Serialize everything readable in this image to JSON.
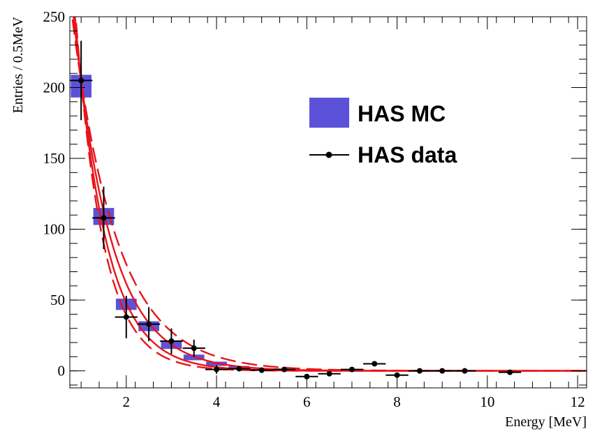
{
  "chart_data": {
    "type": "scatter",
    "xlabel": "Energy [MeV]",
    "ylabel": "Entries / 0.5MeV",
    "xlim": [
      0.75,
      12.2
    ],
    "ylim": [
      -12,
      250
    ],
    "xticks": [
      2,
      4,
      6,
      8,
      10,
      12
    ],
    "yticks": [
      0,
      50,
      100,
      150,
      200,
      250
    ],
    "grid": false,
    "legend_position": "top-right",
    "colors": {
      "mc": "#5c52d9",
      "data": "#000000",
      "fit": "#e8141a"
    },
    "series": [
      {
        "name": "HAS MC",
        "kind": "histogram",
        "bin_width": 0.5,
        "bins": [
          {
            "x": 1.0,
            "y": 201.0,
            "half_height": 8.0
          },
          {
            "x": 1.5,
            "y": 109.0,
            "half_height": 6.0
          },
          {
            "x": 2.0,
            "y": 47.0,
            "half_height": 4.0
          },
          {
            "x": 2.5,
            "y": 31.5,
            "half_height": 3.5
          },
          {
            "x": 3.0,
            "y": 18.0,
            "half_height": 2.5
          },
          {
            "x": 3.5,
            "y": 9.5,
            "half_height": 2.0
          },
          {
            "x": 4.0,
            "y": 5.0,
            "half_height": 1.5
          },
          {
            "x": 4.5,
            "y": 2.5,
            "half_height": 1.0
          }
        ]
      },
      {
        "name": "HAS data",
        "kind": "points",
        "x_half_width": 0.25,
        "points": [
          {
            "x": 1.0,
            "y": 205,
            "err": 28
          },
          {
            "x": 1.5,
            "y": 108,
            "err": 22
          },
          {
            "x": 2.0,
            "y": 38,
            "err": 15
          },
          {
            "x": 2.5,
            "y": 33,
            "err": 12
          },
          {
            "x": 3.0,
            "y": 21,
            "err": 9
          },
          {
            "x": 3.5,
            "y": 16,
            "err": 6
          },
          {
            "x": 4.0,
            "y": 1,
            "err": 3
          },
          {
            "x": 4.5,
            "y": 1.5,
            "err": 1
          },
          {
            "x": 5.0,
            "y": 0.5,
            "err": 0
          },
          {
            "x": 5.5,
            "y": 1,
            "err": 0
          },
          {
            "x": 6.0,
            "y": -4,
            "err": 0
          },
          {
            "x": 6.5,
            "y": -2,
            "err": 0
          },
          {
            "x": 7.0,
            "y": 1,
            "err": 0
          },
          {
            "x": 7.5,
            "y": 5,
            "err": 0
          },
          {
            "x": 8.0,
            "y": -3,
            "err": 0
          },
          {
            "x": 8.5,
            "y": 0,
            "err": 0
          },
          {
            "x": 9.0,
            "y": 0,
            "err": 0
          },
          {
            "x": 9.5,
            "y": 0,
            "err": 0
          },
          {
            "x": 10.5,
            "y": -1,
            "err": 0
          }
        ]
      }
    ],
    "fit_curves": [
      {
        "style": "solid",
        "amplitude": 205,
        "slope": 1.2
      },
      {
        "style": "solid",
        "amplitude": 205,
        "slope": 1.45
      },
      {
        "style": "dashed",
        "amplitude": 205,
        "slope": 1.0
      },
      {
        "style": "dashed",
        "amplitude": 205,
        "slope": 1.65
      }
    ],
    "legend": [
      {
        "label": "HAS MC",
        "kind": "box"
      },
      {
        "label": "HAS data",
        "kind": "marker"
      }
    ]
  }
}
